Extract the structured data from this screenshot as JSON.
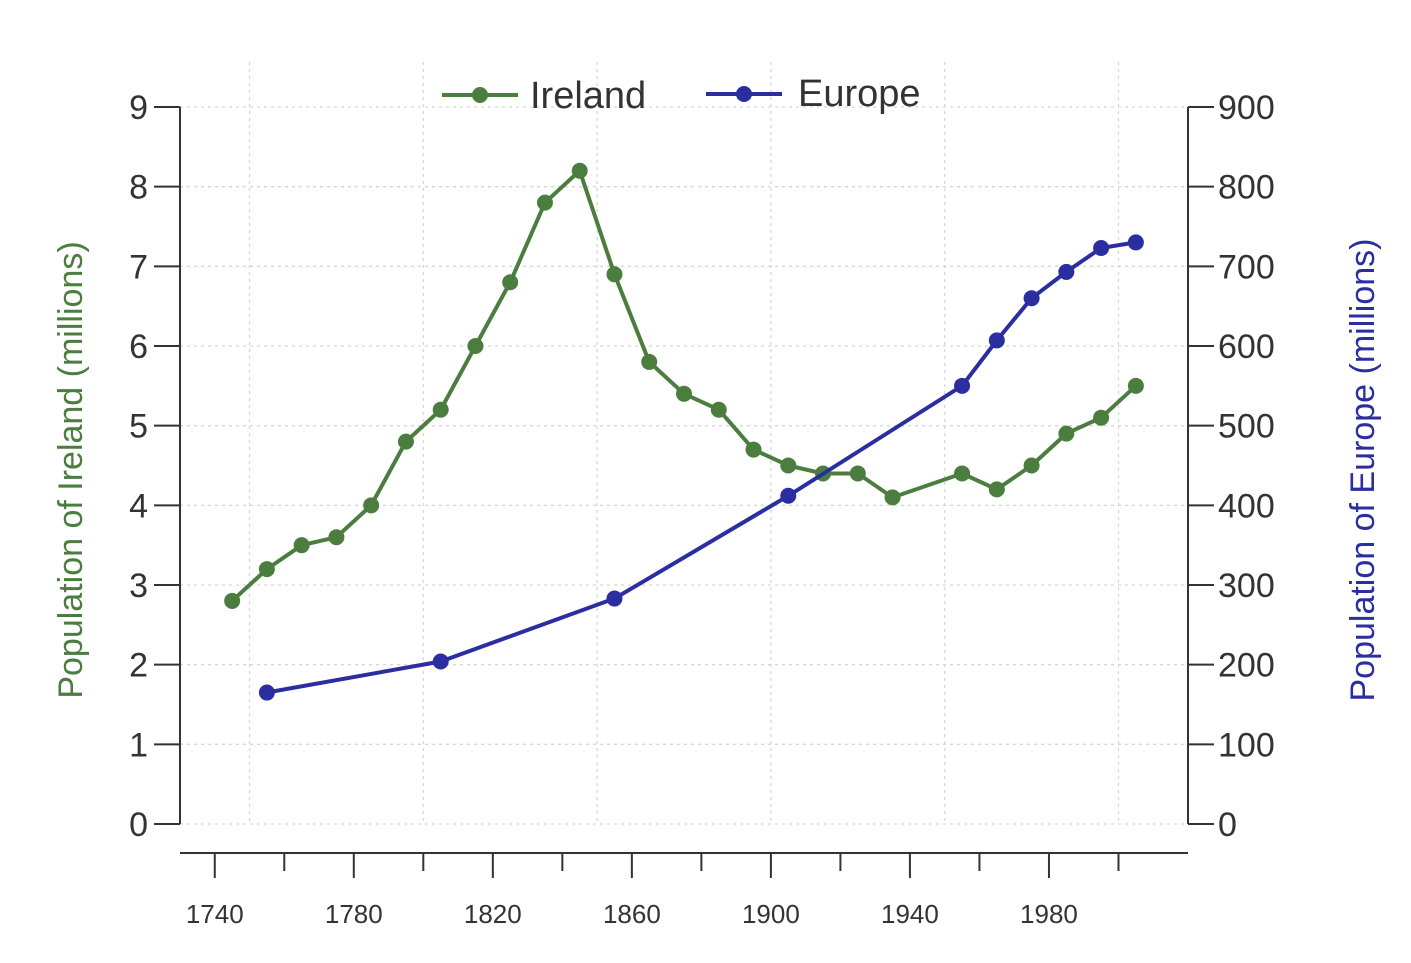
{
  "chart_data": {
    "type": "line",
    "xlabel": "",
    "x_ticks": [
      "1740",
      "1780",
      "1820",
      "1860",
      "1900",
      "1940",
      "1980"
    ],
    "x_grid": [
      1750,
      1800,
      1850,
      1900,
      1950,
      2000
    ],
    "xlim": [
      1730,
      2020
    ],
    "y_left": {
      "label": "Population of Ireland (millions)",
      "ticks": [
        "0",
        "1",
        "2",
        "3",
        "4",
        "5",
        "6",
        "7",
        "8",
        "9"
      ],
      "lim": [
        0,
        9
      ],
      "color": "#4b7d3e"
    },
    "y_right": {
      "label": "Population of Europe (millions)",
      "ticks": [
        "0",
        "100",
        "200",
        "300",
        "400",
        "500",
        "600",
        "700",
        "800",
        "900"
      ],
      "lim": [
        0,
        900
      ],
      "color": "#2b2ea0"
    },
    "grid": true,
    "legend_position": "top-center",
    "series": [
      {
        "name": "Ireland",
        "axis": "left",
        "color": "#4b7d3e",
        "x": [
          1745,
          1755,
          1765,
          1775,
          1785,
          1795,
          1805,
          1815,
          1825,
          1835,
          1845,
          1855,
          1865,
          1875,
          1885,
          1895,
          1905,
          1915,
          1925,
          1935,
          1955,
          1965,
          1975,
          1985,
          1995,
          2005
        ],
        "y": [
          2.8,
          3.2,
          3.5,
          3.6,
          4.0,
          4.8,
          5.2,
          6.0,
          6.8,
          7.8,
          8.2,
          6.9,
          5.8,
          5.4,
          5.2,
          4.7,
          4.5,
          4.4,
          4.4,
          4.1,
          4.4,
          4.2,
          4.5,
          4.9,
          5.1,
          5.5
        ]
      },
      {
        "name": "Europe",
        "axis": "right",
        "color": "#2b2ea0",
        "x": [
          1755,
          1805,
          1855,
          1905,
          1955,
          1965,
          1975,
          1985,
          1995,
          2005
        ],
        "y": [
          165,
          204,
          283,
          412,
          550,
          607,
          660,
          693,
          723,
          730
        ]
      }
    ]
  }
}
